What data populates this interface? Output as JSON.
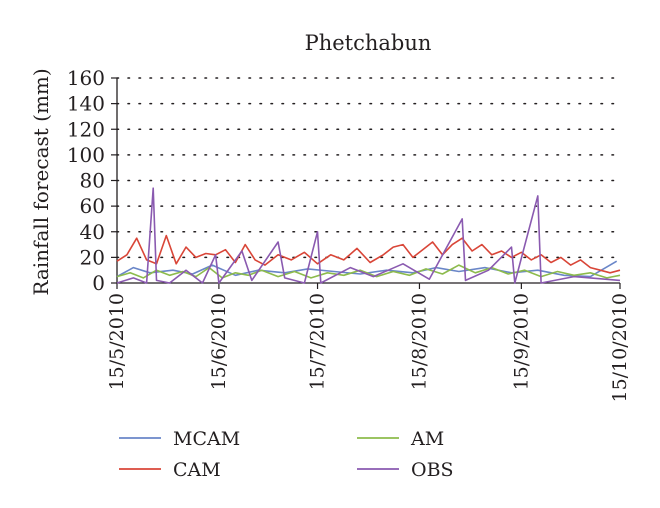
{
  "chart_data": {
    "type": "line",
    "title": "Phetchabun",
    "xlabel": "",
    "ylabel": "Rainfall forecast (mm)",
    "x_tick_labels": [
      "15/5/2010",
      "15/6/2010",
      "15/7/2010",
      "15/8/2010",
      "15/9/2010",
      "15/10/2010"
    ],
    "y_tick_labels": [
      "0",
      "20",
      "40",
      "60",
      "80",
      "100",
      "120",
      "140",
      "160"
    ],
    "xlim": [
      "2010-05-15",
      "2010-10-15"
    ],
    "ylim": [
      0,
      160
    ],
    "grid": "dotted horizontal",
    "legend_position": "bottom",
    "series": [
      {
        "name": "MCAM",
        "color": "#6a86c8",
        "points": [
          [
            "2010-05-15",
            5
          ],
          [
            "2010-05-20",
            12
          ],
          [
            "2010-05-25",
            8
          ],
          [
            "2010-06-01",
            10
          ],
          [
            "2010-06-07",
            7
          ],
          [
            "2010-06-13",
            14
          ],
          [
            "2010-06-20",
            6
          ],
          [
            "2010-06-27",
            10
          ],
          [
            "2010-07-05",
            8
          ],
          [
            "2010-07-12",
            11
          ],
          [
            "2010-07-20",
            9
          ],
          [
            "2010-07-28",
            7
          ],
          [
            "2010-08-05",
            10
          ],
          [
            "2010-08-13",
            8
          ],
          [
            "2010-08-20",
            12
          ],
          [
            "2010-08-27",
            9
          ],
          [
            "2010-09-04",
            12
          ],
          [
            "2010-09-12",
            8
          ],
          [
            "2010-09-20",
            10
          ],
          [
            "2010-09-28",
            6
          ],
          [
            "2010-10-06",
            5
          ],
          [
            "2010-10-14",
            17
          ]
        ]
      },
      {
        "name": "CAM",
        "color": "#d94638",
        "points": [
          [
            "2010-05-15",
            17
          ],
          [
            "2010-05-18",
            22
          ],
          [
            "2010-05-21",
            35
          ],
          [
            "2010-05-24",
            18
          ],
          [
            "2010-05-27",
            15
          ],
          [
            "2010-05-30",
            37
          ],
          [
            "2010-06-02",
            15
          ],
          [
            "2010-06-05",
            28
          ],
          [
            "2010-06-08",
            20
          ],
          [
            "2010-06-11",
            23
          ],
          [
            "2010-06-14",
            22
          ],
          [
            "2010-06-17",
            26
          ],
          [
            "2010-06-20",
            16
          ],
          [
            "2010-06-23",
            30
          ],
          [
            "2010-06-26",
            18
          ],
          [
            "2010-06-29",
            14
          ],
          [
            "2010-07-03",
            22
          ],
          [
            "2010-07-07",
            18
          ],
          [
            "2010-07-11",
            24
          ],
          [
            "2010-07-15",
            15
          ],
          [
            "2010-07-19",
            22
          ],
          [
            "2010-07-23",
            18
          ],
          [
            "2010-07-27",
            27
          ],
          [
            "2010-07-31",
            16
          ],
          [
            "2010-08-04",
            22
          ],
          [
            "2010-08-07",
            28
          ],
          [
            "2010-08-10",
            30
          ],
          [
            "2010-08-13",
            20
          ],
          [
            "2010-08-16",
            26
          ],
          [
            "2010-08-19",
            32
          ],
          [
            "2010-08-22",
            22
          ],
          [
            "2010-08-25",
            30
          ],
          [
            "2010-08-28",
            35
          ],
          [
            "2010-08-31",
            25
          ],
          [
            "2010-09-03",
            30
          ],
          [
            "2010-09-06",
            22
          ],
          [
            "2010-09-09",
            25
          ],
          [
            "2010-09-12",
            20
          ],
          [
            "2010-09-15",
            24
          ],
          [
            "2010-09-18",
            18
          ],
          [
            "2010-09-21",
            22
          ],
          [
            "2010-09-24",
            16
          ],
          [
            "2010-09-27",
            20
          ],
          [
            "2010-09-30",
            14
          ],
          [
            "2010-10-03",
            18
          ],
          [
            "2010-10-06",
            12
          ],
          [
            "2010-10-09",
            10
          ],
          [
            "2010-10-12",
            8
          ],
          [
            "2010-10-15",
            10
          ]
        ]
      },
      {
        "name": "AM",
        "color": "#8dbb4c",
        "points": [
          [
            "2010-05-15",
            5
          ],
          [
            "2010-05-19",
            8
          ],
          [
            "2010-05-23",
            4
          ],
          [
            "2010-05-27",
            10
          ],
          [
            "2010-05-31",
            6
          ],
          [
            "2010-06-04",
            9
          ],
          [
            "2010-06-08",
            5
          ],
          [
            "2010-06-12",
            12
          ],
          [
            "2010-06-16",
            4
          ],
          [
            "2010-06-20",
            8
          ],
          [
            "2010-06-24",
            6
          ],
          [
            "2010-06-28",
            10
          ],
          [
            "2010-07-03",
            5
          ],
          [
            "2010-07-08",
            9
          ],
          [
            "2010-07-13",
            4
          ],
          [
            "2010-07-18",
            8
          ],
          [
            "2010-07-23",
            6
          ],
          [
            "2010-07-28",
            10
          ],
          [
            "2010-08-02",
            5
          ],
          [
            "2010-08-07",
            9
          ],
          [
            "2010-08-12",
            6
          ],
          [
            "2010-08-17",
            11
          ],
          [
            "2010-08-22",
            7
          ],
          [
            "2010-08-27",
            14
          ],
          [
            "2010-09-01",
            8
          ],
          [
            "2010-09-06",
            12
          ],
          [
            "2010-09-11",
            7
          ],
          [
            "2010-09-16",
            10
          ],
          [
            "2010-09-21",
            5
          ],
          [
            "2010-09-26",
            9
          ],
          [
            "2010-10-01",
            6
          ],
          [
            "2010-10-06",
            8
          ],
          [
            "2010-10-11",
            4
          ],
          [
            "2010-10-15",
            6
          ]
        ]
      },
      {
        "name": "OBS",
        "color": "#8a5ab0",
        "points": [
          [
            "2010-05-15",
            0
          ],
          [
            "2010-05-20",
            4
          ],
          [
            "2010-05-24",
            0
          ],
          [
            "2010-05-26",
            74
          ],
          [
            "2010-05-27",
            2
          ],
          [
            "2010-05-31",
            0
          ],
          [
            "2010-06-05",
            10
          ],
          [
            "2010-06-10",
            0
          ],
          [
            "2010-06-14",
            22
          ],
          [
            "2010-06-15",
            0
          ],
          [
            "2010-06-22",
            25
          ],
          [
            "2010-06-25",
            2
          ],
          [
            "2010-07-03",
            32
          ],
          [
            "2010-07-05",
            4
          ],
          [
            "2010-07-11",
            0
          ],
          [
            "2010-07-15",
            40
          ],
          [
            "2010-07-16",
            0
          ],
          [
            "2010-07-25",
            12
          ],
          [
            "2010-08-01",
            5
          ],
          [
            "2010-08-10",
            15
          ],
          [
            "2010-08-18",
            3
          ],
          [
            "2010-08-28",
            50
          ],
          [
            "2010-08-29",
            2
          ],
          [
            "2010-09-05",
            10
          ],
          [
            "2010-09-12",
            28
          ],
          [
            "2010-09-13",
            0
          ],
          [
            "2010-09-20",
            68
          ],
          [
            "2010-09-21",
            0
          ],
          [
            "2010-10-01",
            5
          ],
          [
            "2010-10-15",
            2
          ]
        ]
      }
    ]
  }
}
